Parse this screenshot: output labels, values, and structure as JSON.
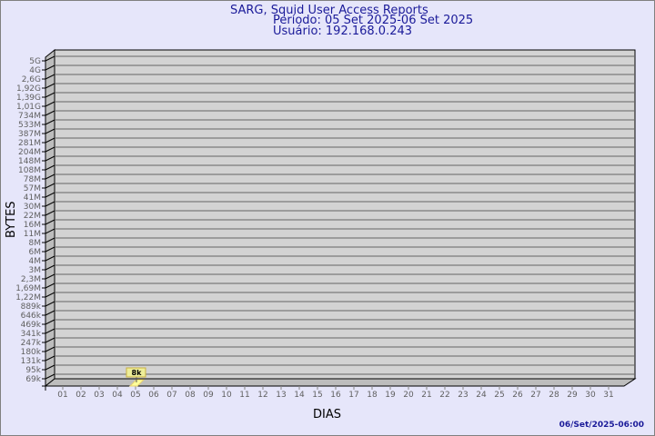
{
  "chart_data": {
    "type": "bar",
    "title": [
      "SARG, Squid User Access Reports",
      "Período: 05 Set 2025-06 Set 2025",
      "Usuário: 192.168.0.243"
    ],
    "xlabel": "DIAS",
    "ylabel": "BYTES",
    "ytick_labels": [
      "69k",
      "95k",
      "131k",
      "180k",
      "247k",
      "341k",
      "469k",
      "646k",
      "889k",
      "1,22M",
      "1,69M",
      "2,3M",
      "3M",
      "4M",
      "6M",
      "8M",
      "11M",
      "16M",
      "22M",
      "30M",
      "41M",
      "57M",
      "78M",
      "108M",
      "148M",
      "204M",
      "281M",
      "387M",
      "533M",
      "734M",
      "1,01G",
      "1,39G",
      "1,92G",
      "2,6G",
      "4G",
      "5G"
    ],
    "categories": [
      "01",
      "02",
      "03",
      "04",
      "05",
      "06",
      "07",
      "08",
      "09",
      "10",
      "11",
      "12",
      "13",
      "14",
      "15",
      "16",
      "17",
      "18",
      "19",
      "20",
      "21",
      "22",
      "23",
      "24",
      "25",
      "26",
      "27",
      "28",
      "29",
      "30",
      "31"
    ],
    "bars": [
      {
        "category": "05",
        "value": 8000,
        "label": "8k"
      }
    ],
    "grid": true,
    "colors": {
      "background": "#e6e6fa",
      "plot": "#d3d3d3",
      "bar": "#ffff99",
      "label_box": "#eeee99",
      "title": "#1a1a99"
    }
  },
  "footer": "06/Set/2025-06:00"
}
